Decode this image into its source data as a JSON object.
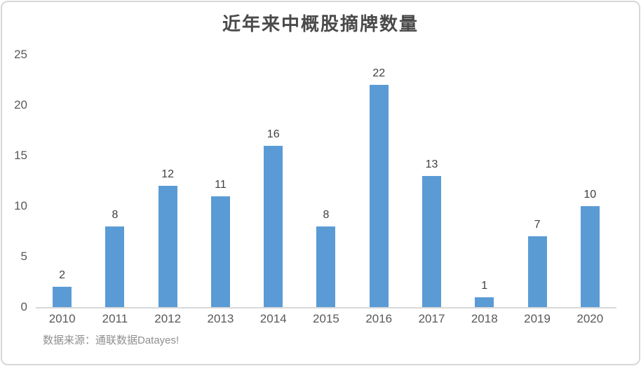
{
  "chart_data": {
    "type": "bar",
    "title": "近年来中概股摘牌数量",
    "categories": [
      "2010",
      "2011",
      "2012",
      "2013",
      "2014",
      "2015",
      "2016",
      "2017",
      "2018",
      "2019",
      "2020"
    ],
    "values": [
      2,
      8,
      12,
      11,
      16,
      8,
      22,
      13,
      1,
      7,
      10
    ],
    "xlabel": "",
    "ylabel": "",
    "ylim": [
      0,
      25
    ],
    "yticks": [
      0,
      5,
      10,
      15,
      20,
      25
    ],
    "grid": "off",
    "legend_position": "none",
    "bar_color": "#5b9bd5",
    "axis_line_color": "#d9d9d9",
    "source_note": "数据来源：通联数据Datayes!"
  }
}
